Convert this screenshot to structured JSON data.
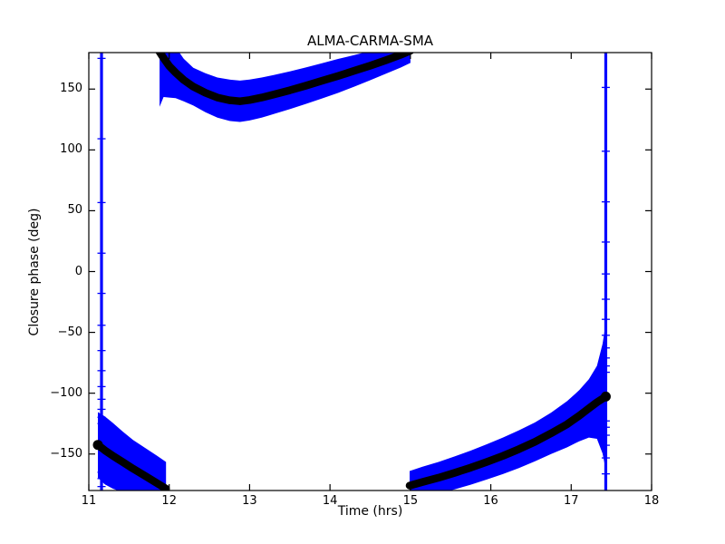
{
  "figure": {
    "background": "#ffffff"
  },
  "chart_data": {
    "type": "line",
    "subtype": "errorbar",
    "title": "ALMA-CARMA-SMA",
    "xlabel": "Time (hrs)",
    "ylabel": "Closure phase (deg)",
    "xlim": [
      11,
      18
    ],
    "ylim": [
      -180,
      180
    ],
    "xticks": [
      11,
      12,
      13,
      14,
      15,
      16,
      17,
      18
    ],
    "yticks": [
      -150,
      -100,
      -50,
      0,
      50,
      100,
      150
    ],
    "grid": false,
    "legend_position": "none",
    "colors": {
      "error_bars": "#0000ff",
      "model_curve": "#000000",
      "frame": "#000000",
      "background": "#ffffff"
    },
    "point_format": [
      "time_hrs",
      "closure_phase_deg",
      "error_halfwidth_deg"
    ],
    "branches": [
      {
        "name": "upper-wrapped-branch",
        "points": [
          [
            11.88,
            180.5,
            45
          ],
          [
            11.93,
            175.5,
            32
          ],
          [
            12.0,
            169,
            26
          ],
          [
            12.08,
            163.5,
            21
          ],
          [
            12.18,
            157.5,
            17.5
          ],
          [
            12.3,
            152,
            15.5
          ],
          [
            12.45,
            147,
            16
          ],
          [
            12.6,
            143,
            16.5
          ],
          [
            12.75,
            140.8,
            17
          ],
          [
            12.88,
            140,
            17
          ],
          [
            13.0,
            141,
            16.8
          ],
          [
            13.15,
            143,
            16.5
          ],
          [
            13.3,
            145.5,
            16
          ],
          [
            13.5,
            149,
            15.5
          ],
          [
            13.7,
            152.8,
            15
          ],
          [
            13.9,
            156.8,
            14.5
          ],
          [
            14.1,
            160.8,
            14
          ],
          [
            14.3,
            165,
            13
          ],
          [
            14.5,
            169.3,
            12
          ],
          [
            14.7,
            173.8,
            11
          ],
          [
            14.88,
            178.2,
            10.5
          ],
          [
            15.0,
            181.5,
            10
          ]
        ]
      },
      {
        "name": "lower-left-branch",
        "points": [
          [
            11.113,
            -142.5,
            27
          ],
          [
            11.2,
            -147,
            28
          ],
          [
            11.3,
            -151.5,
            27
          ],
          [
            11.42,
            -156.5,
            25
          ],
          [
            11.55,
            -162,
            23.5
          ],
          [
            11.7,
            -168,
            23
          ],
          [
            11.85,
            -174,
            22.5
          ],
          [
            11.96,
            -178.5,
            22
          ]
        ]
      },
      {
        "name": "lower-right-branch",
        "points": [
          [
            14.99,
            -176,
            12
          ],
          [
            15.15,
            -173,
            12.5
          ],
          [
            15.35,
            -169.5,
            13
          ],
          [
            15.55,
            -165.5,
            13.5
          ],
          [
            15.75,
            -161.2,
            14
          ],
          [
            15.95,
            -156.5,
            14.5
          ],
          [
            16.15,
            -151.5,
            15
          ],
          [
            16.35,
            -146,
            15.5
          ],
          [
            16.55,
            -140,
            16
          ],
          [
            16.75,
            -133,
            17
          ],
          [
            16.95,
            -125.5,
            19
          ],
          [
            17.1,
            -118.5,
            21
          ],
          [
            17.22,
            -112.5,
            24
          ],
          [
            17.32,
            -107.5,
            30
          ],
          [
            17.39,
            -104.5,
            45
          ],
          [
            17.43,
            -102.8,
            60
          ]
        ]
      }
    ],
    "error_spikes": [
      {
        "t": 11.158,
        "phase": -145,
        "err": 330
      },
      {
        "t": 17.43,
        "phase": -102.8,
        "err": 330
      }
    ],
    "end_markers": [
      {
        "t": 11.113,
        "phase": -142.5
      },
      {
        "t": 17.43,
        "phase": -102.8
      }
    ]
  }
}
